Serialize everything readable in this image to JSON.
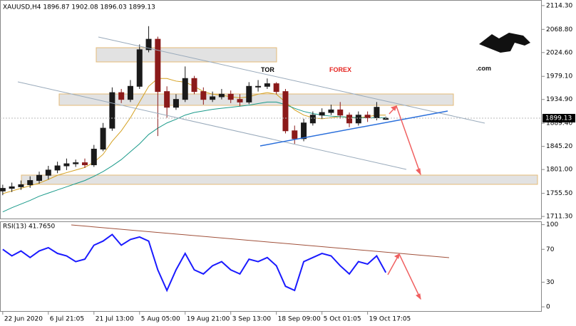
{
  "chart_data": [
    {
      "type": "candlestick",
      "title": "XAUUSD,H4  1896.87 1902.08 1896.03 1899.13",
      "watermark": {
        "part1": "TOR",
        "part2": "FOREX",
        "part3": ".com"
      },
      "x": [
        0,
        1,
        2,
        3,
        4,
        5,
        6,
        7,
        8,
        9,
        10,
        11,
        12,
        13,
        14,
        15,
        16,
        17,
        18,
        19,
        20,
        21,
        22,
        23,
        24,
        25,
        26,
        27,
        28,
        29,
        30,
        31,
        32,
        33,
        34,
        35,
        36,
        37,
        38,
        39,
        40,
        41,
        42
      ],
      "open": [
        1760,
        1765,
        1768,
        1772,
        1780,
        1790,
        1800,
        1808,
        1812,
        1814,
        1810,
        1840,
        1880,
        1948,
        1935,
        1960,
        2030,
        2050,
        1950,
        1920,
        1935,
        1975,
        1950,
        1935,
        1940,
        1945,
        1935,
        1930,
        1960,
        1960,
        1965,
        1950,
        1875,
        1860,
        1890,
        1905,
        1910,
        1915,
        1905,
        1890,
        1905,
        1900,
        1896.87
      ],
      "high": [
        1772,
        1776,
        1780,
        1788,
        1797,
        1808,
        1816,
        1822,
        1820,
        1822,
        1848,
        1890,
        1958,
        1955,
        1972,
        2040,
        2075,
        2055,
        1960,
        1945,
        1998,
        1980,
        1958,
        1950,
        1955,
        1952,
        1945,
        1968,
        1972,
        1975,
        1968,
        1955,
        1885,
        1898,
        1912,
        1918,
        1925,
        1930,
        1910,
        1912,
        1912,
        1930,
        1902.08
      ],
      "low": [
        1752,
        1758,
        1762,
        1766,
        1774,
        1782,
        1794,
        1800,
        1806,
        1804,
        1806,
        1836,
        1875,
        1928,
        1930,
        1955,
        2025,
        1865,
        1900,
        1915,
        1930,
        1945,
        1925,
        1930,
        1935,
        1928,
        1922,
        1926,
        1950,
        1955,
        1945,
        1870,
        1850,
        1855,
        1885,
        1898,
        1905,
        1898,
        1882,
        1885,
        1892,
        1895,
        1896.03
      ],
      "close": [
        1765,
        1768,
        1772,
        1780,
        1790,
        1800,
        1808,
        1812,
        1814,
        1810,
        1840,
        1880,
        1948,
        1935,
        1960,
        2030,
        2050,
        1950,
        1920,
        1935,
        1975,
        1950,
        1935,
        1940,
        1945,
        1935,
        1930,
        1960,
        1960,
        1965,
        1950,
        1875,
        1860,
        1890,
        1905,
        1910,
        1915,
        1905,
        1890,
        1905,
        1900,
        1920,
        1899.13
      ],
      "colors": {
        "up": "#1a1a1a",
        "down": "#8b1a1a"
      },
      "series": [
        {
          "color": "#d4a020",
          "values": [
            1755,
            1760,
            1765,
            1770,
            1775,
            1782,
            1790,
            1795,
            1800,
            1805,
            1815,
            1830,
            1855,
            1875,
            1900,
            1930,
            1960,
            1975,
            1975,
            1970,
            1968,
            1960,
            1950,
            1945,
            1943,
            1940,
            1938,
            1940,
            1945,
            1948,
            1945,
            1930,
            1915,
            1905,
            1900,
            1898,
            1900,
            1902,
            1900,
            1900,
            1902,
            1905,
            1905
          ]
        },
        {
          "color": "#1a9a8a",
          "values": [
            1720,
            1728,
            1735,
            1742,
            1750,
            1756,
            1762,
            1768,
            1774,
            1780,
            1788,
            1797,
            1808,
            1820,
            1835,
            1850,
            1868,
            1880,
            1890,
            1897,
            1905,
            1910,
            1913,
            1916,
            1918,
            1920,
            1922,
            1924,
            1927,
            1930,
            1930,
            1925,
            1918,
            1912,
            1908,
            1905,
            1903,
            1902,
            1901,
            1900,
            1900,
            1900,
            1900
          ]
        }
      ],
      "xlim": [
        -0.3,
        59.1
      ],
      "ylim": [
        1706,
        2125
      ],
      "yticks": [
        {
          "value": 2114.3,
          "label": "2114.30"
        },
        {
          "value": 2068.8,
          "label": "2068.80"
        },
        {
          "value": 2024.6,
          "label": "2024.60"
        },
        {
          "value": 1979.1,
          "label": "1979.10"
        },
        {
          "value": 1934.9,
          "label": "1934.90"
        },
        {
          "value": 1889.4,
          "label": "1889.40"
        },
        {
          "value": 1845.2,
          "label": "1845.20"
        },
        {
          "value": 1801,
          "label": "1801.00"
        },
        {
          "value": 1755.5,
          "label": "1755.50"
        },
        {
          "value": 1711.3,
          "label": "1711.30"
        }
      ],
      "xticks": [
        {
          "value": 0,
          "label": "22 Jun 2020"
        },
        {
          "value": 5,
          "label": "6 Jul 21:05"
        },
        {
          "value": 10,
          "label": "21 Jul 13:00"
        },
        {
          "value": 15,
          "label": "5 Aug 05:00"
        },
        {
          "value": 20,
          "label": "19 Aug 21:00"
        },
        {
          "value": 25,
          "label": "3 Sep 13:00"
        },
        {
          "value": 30,
          "label": "18 Sep 09:00"
        },
        {
          "value": 35,
          "label": "5 Oct 01:05"
        },
        {
          "value": 40,
          "label": "19 Oct 17:05"
        }
      ]
    },
    {
      "type": "line",
      "title": "RSI(13) 41.7650",
      "x": [
        0,
        1,
        2,
        3,
        4,
        5,
        6,
        7,
        8,
        9,
        10,
        11,
        12,
        13,
        14,
        15,
        16,
        17,
        18,
        19,
        20,
        21,
        22,
        23,
        24,
        25,
        26,
        27,
        28,
        29,
        30,
        31,
        32,
        33,
        34,
        35,
        36,
        37,
        38,
        39,
        40,
        41,
        42
      ],
      "series": [
        {
          "color": "#1a1aff",
          "values": [
            70,
            62,
            68,
            60,
            68,
            72,
            65,
            62,
            55,
            58,
            75,
            80,
            88,
            75,
            82,
            85,
            80,
            45,
            20,
            45,
            65,
            45,
            40,
            50,
            55,
            45,
            40,
            58,
            55,
            60,
            50,
            25,
            20,
            55,
            60,
            65,
            62,
            50,
            40,
            55,
            52,
            62,
            41.765
          ]
        }
      ],
      "xlim": [
        -0.3,
        59.1
      ],
      "ylim": [
        -6,
        104
      ],
      "yticks": [
        100,
        70,
        30,
        0
      ]
    }
  ]
}
